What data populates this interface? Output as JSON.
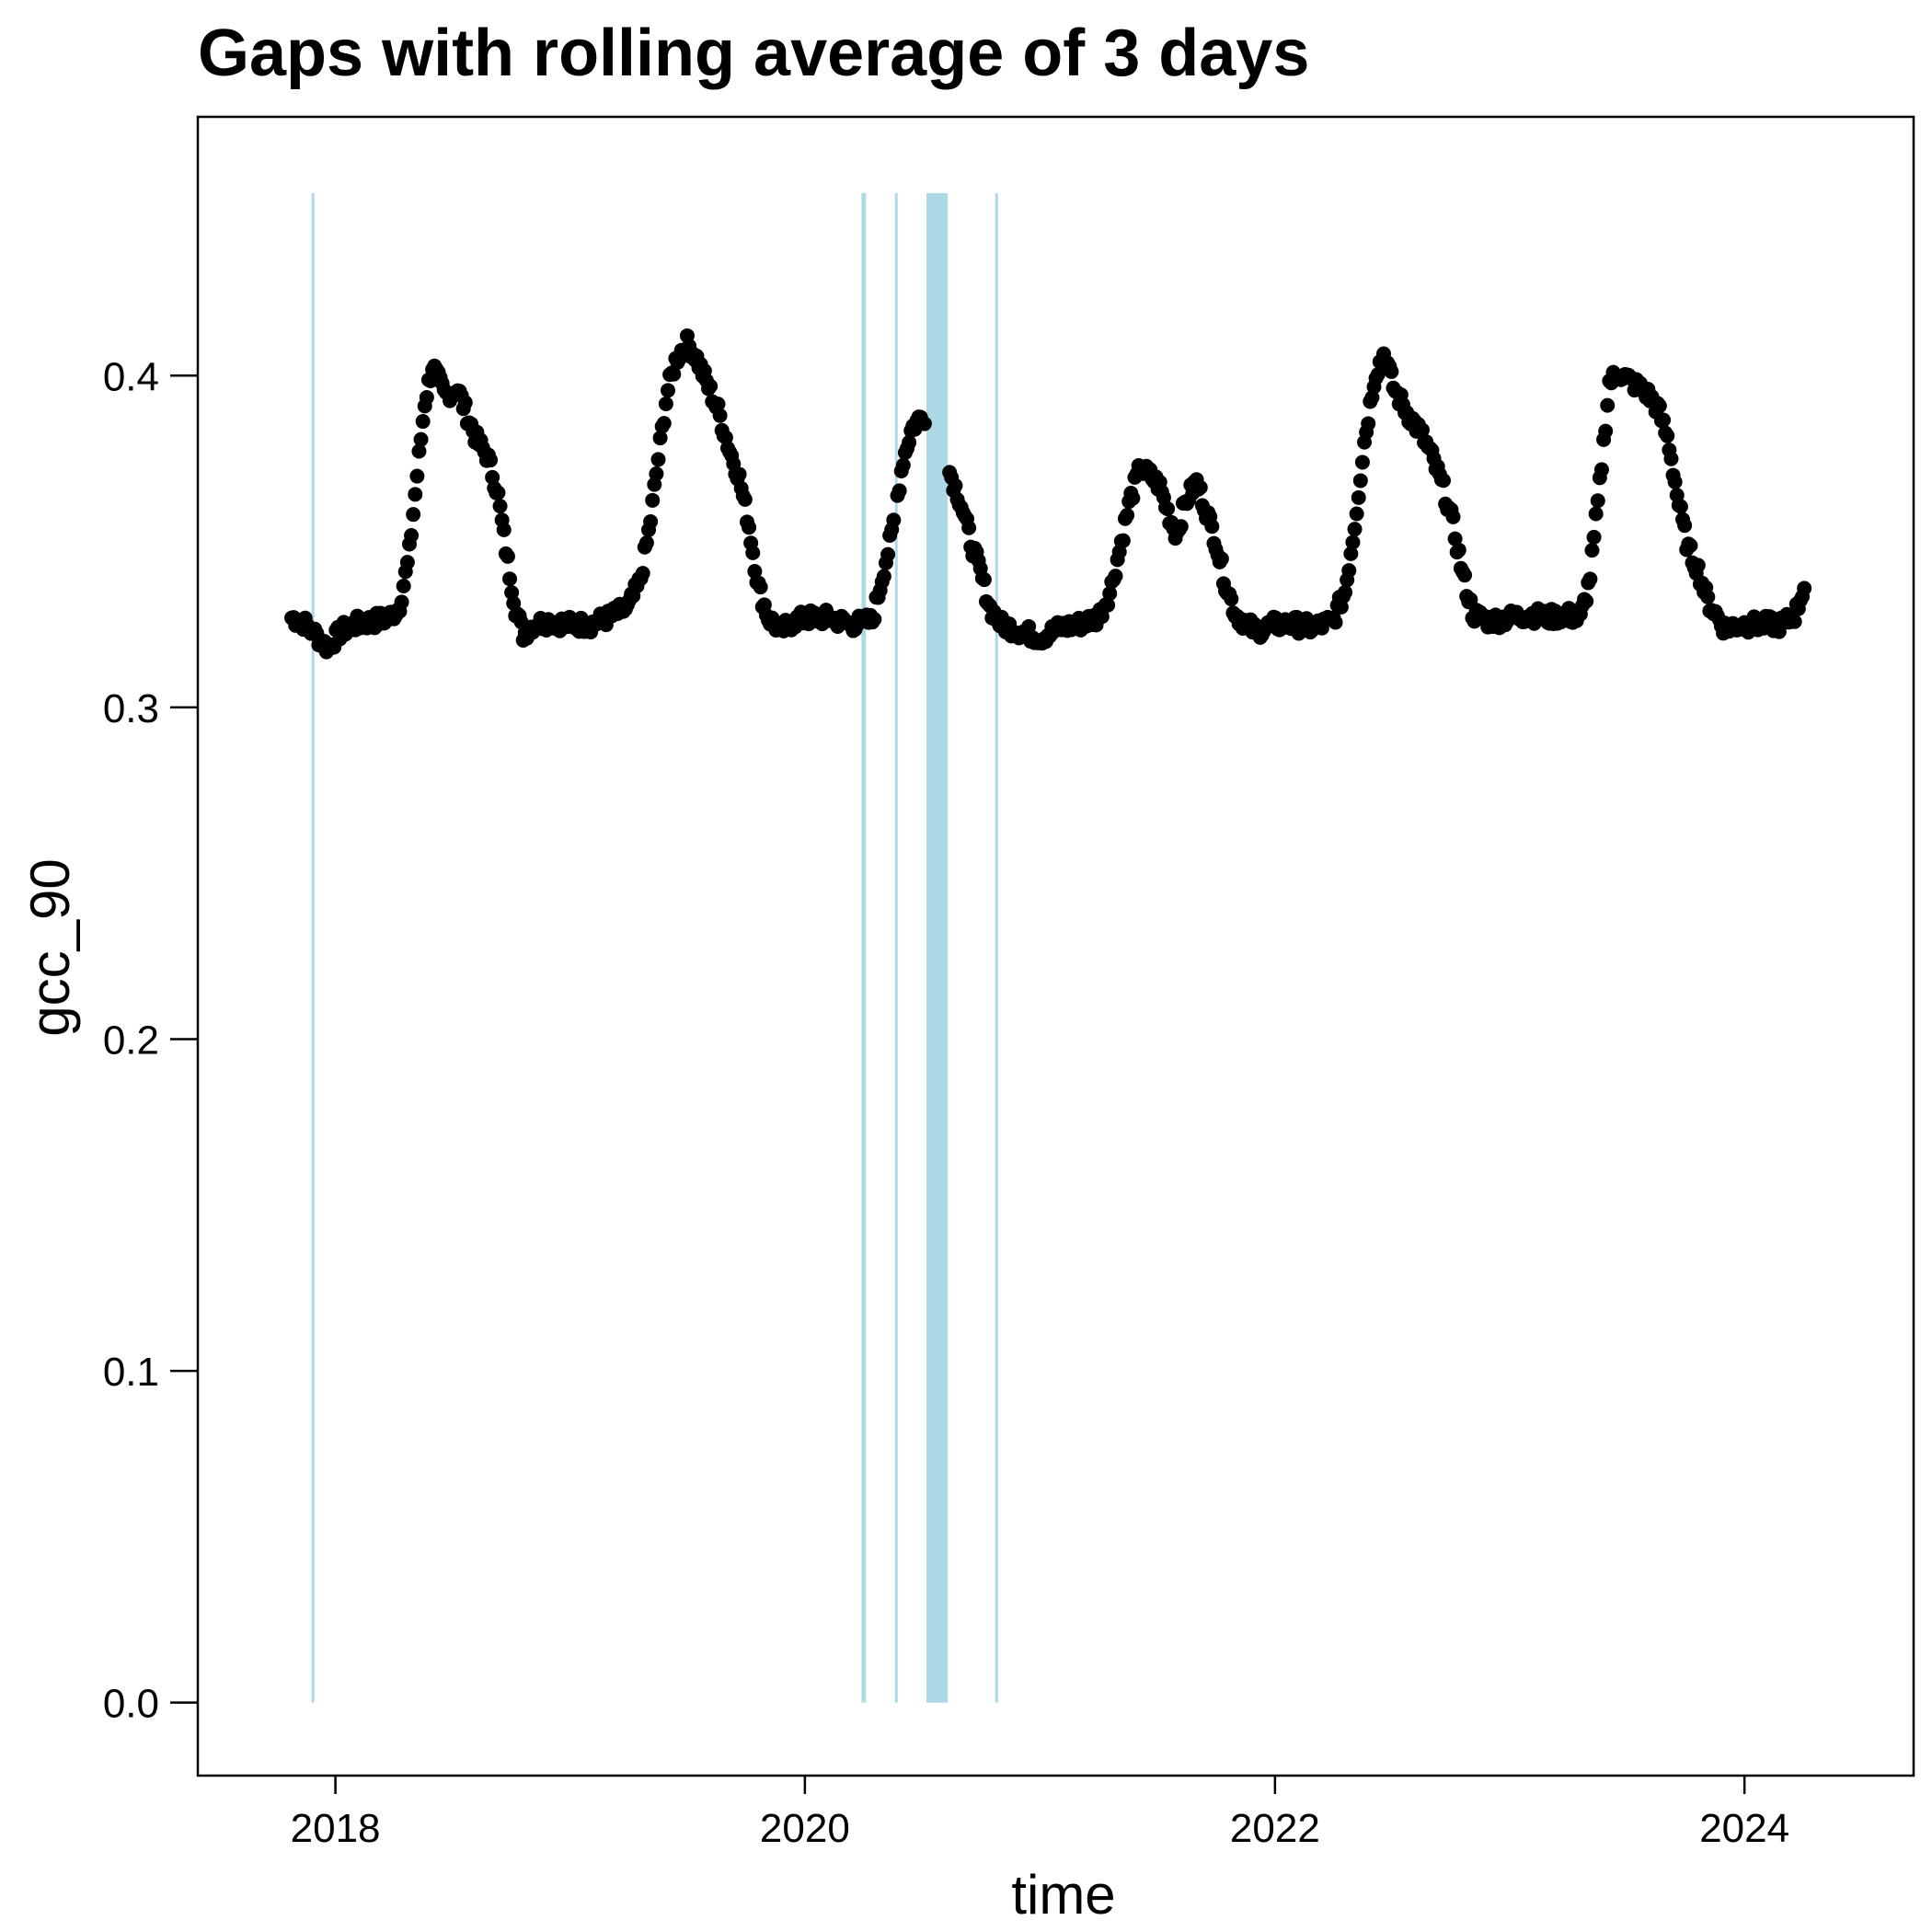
{
  "chart_data": {
    "type": "scatter",
    "title": "Gaps with rolling average of 3 days",
    "xlabel": "time",
    "ylabel": "gcc_90",
    "x_is_date": true,
    "xlim": [
      "2017-06-01",
      "2024-09-20"
    ],
    "ylim": [
      -0.022,
      0.478
    ],
    "x_ticks": [
      {
        "value": "2018-01-01",
        "label": "2018"
      },
      {
        "value": "2020-01-01",
        "label": "2020"
      },
      {
        "value": "2022-01-01",
        "label": "2022"
      },
      {
        "value": "2024-01-01",
        "label": "2024"
      }
    ],
    "y_ticks": [
      {
        "value": 0.0,
        "label": "0.0"
      },
      {
        "value": 0.1,
        "label": "0.1"
      },
      {
        "value": 0.2,
        "label": "0.2"
      },
      {
        "value": 0.3,
        "label": "0.3"
      },
      {
        "value": 0.4,
        "label": "0.4"
      }
    ],
    "grid": false,
    "gap_color": "#add8e6",
    "point_color": "#000000",
    "gaps": [
      {
        "start": "2017-11-25",
        "end": "2017-11-27",
        "ymin": 0.0,
        "ymax": 0.455
      },
      {
        "start": "2020-03-29",
        "end": "2020-04-05",
        "ymin": 0.0,
        "ymax": 0.455
      },
      {
        "start": "2020-05-20",
        "end": "2020-05-22",
        "ymin": 0.0,
        "ymax": 0.455
      },
      {
        "start": "2020-07-08",
        "end": "2020-08-10",
        "ymin": 0.0,
        "ymax": 0.455
      },
      {
        "start": "2020-10-23",
        "end": "2020-10-25",
        "ymin": 0.0,
        "ymax": 0.455
      }
    ],
    "series": [
      {
        "values": [
          [
            "2017-10-25",
            0.327
          ],
          [
            "2017-11-10",
            0.326
          ],
          [
            "2017-12-01",
            0.322
          ],
          [
            "2017-12-20",
            0.318
          ],
          [
            "2018-01-10",
            0.323
          ],
          [
            "2018-02-01",
            0.325
          ],
          [
            "2018-03-01",
            0.326
          ],
          [
            "2018-03-25",
            0.327
          ],
          [
            "2018-04-10",
            0.33
          ],
          [
            "2018-04-25",
            0.345
          ],
          [
            "2018-05-08",
            0.37
          ],
          [
            "2018-05-20",
            0.392
          ],
          [
            "2018-06-01",
            0.403
          ],
          [
            "2018-06-20",
            0.394
          ],
          [
            "2018-07-10",
            0.396
          ],
          [
            "2018-07-25",
            0.388
          ],
          [
            "2018-08-10",
            0.38
          ],
          [
            "2018-08-25",
            0.376
          ],
          [
            "2018-09-10",
            0.365
          ],
          [
            "2018-09-25",
            0.345
          ],
          [
            "2018-10-08",
            0.33
          ],
          [
            "2018-10-20",
            0.322
          ],
          [
            "2018-11-05",
            0.325
          ],
          [
            "2018-12-01",
            0.326
          ],
          [
            "2019-01-01",
            0.325
          ],
          [
            "2019-02-01",
            0.325
          ],
          [
            "2019-03-01",
            0.327
          ],
          [
            "2019-04-01",
            0.33
          ],
          [
            "2019-04-20",
            0.338
          ],
          [
            "2019-05-05",
            0.355
          ],
          [
            "2019-05-18",
            0.375
          ],
          [
            "2019-06-01",
            0.395
          ],
          [
            "2019-06-15",
            0.405
          ],
          [
            "2019-07-01",
            0.41
          ],
          [
            "2019-07-15",
            0.406
          ],
          [
            "2019-08-01",
            0.398
          ],
          [
            "2019-08-20",
            0.389
          ],
          [
            "2019-09-05",
            0.378
          ],
          [
            "2019-09-20",
            0.37
          ],
          [
            "2019-10-05",
            0.356
          ],
          [
            "2019-10-20",
            0.337
          ],
          [
            "2019-11-05",
            0.327
          ],
          [
            "2019-11-25",
            0.323
          ],
          [
            "2019-12-15",
            0.326
          ],
          [
            "2020-01-10",
            0.327
          ],
          [
            "2020-02-10",
            0.327
          ],
          [
            "2020-03-10",
            0.325
          ],
          [
            "2020-04-15",
            0.326
          ],
          [
            "2020-05-01",
            0.34
          ],
          [
            "2020-05-15",
            0.352
          ],
          [
            "2020-06-01",
            0.374
          ],
          [
            "2020-06-15",
            0.384
          ],
          [
            "2020-07-01",
            0.388
          ],
          [
            "2020-07-06",
            0.388
          ],
          [
            "2020-08-15",
            0.37
          ],
          [
            "2020-08-30",
            0.362
          ],
          [
            "2020-09-15",
            0.35
          ],
          [
            "2020-10-01",
            0.34
          ],
          [
            "2020-10-15",
            0.33
          ],
          [
            "2020-11-01",
            0.325
          ],
          [
            "2020-12-01",
            0.323
          ],
          [
            "2021-01-01",
            0.321
          ],
          [
            "2021-02-01",
            0.324
          ],
          [
            "2021-03-01",
            0.325
          ],
          [
            "2021-04-01",
            0.327
          ],
          [
            "2021-04-20",
            0.335
          ],
          [
            "2021-05-05",
            0.348
          ],
          [
            "2021-05-20",
            0.362
          ],
          [
            "2021-06-05",
            0.372
          ],
          [
            "2021-06-20",
            0.37
          ],
          [
            "2021-07-05",
            0.367
          ],
          [
            "2021-07-20",
            0.358
          ],
          [
            "2021-08-01",
            0.352
          ],
          [
            "2021-08-15",
            0.362
          ],
          [
            "2021-09-01",
            0.368
          ],
          [
            "2021-09-15",
            0.36
          ],
          [
            "2021-10-01",
            0.35
          ],
          [
            "2021-10-15",
            0.338
          ],
          [
            "2021-11-01",
            0.328
          ],
          [
            "2021-12-01",
            0.323
          ],
          [
            "2022-01-01",
            0.325
          ],
          [
            "2022-02-01",
            0.325
          ],
          [
            "2022-03-01",
            0.324
          ],
          [
            "2022-04-01",
            0.326
          ],
          [
            "2022-04-20",
            0.335
          ],
          [
            "2022-05-05",
            0.355
          ],
          [
            "2022-05-20",
            0.38
          ],
          [
            "2022-06-05",
            0.4
          ],
          [
            "2022-06-20",
            0.407
          ],
          [
            "2022-07-05",
            0.396
          ],
          [
            "2022-07-25",
            0.389
          ],
          [
            "2022-08-15",
            0.383
          ],
          [
            "2022-09-01",
            0.376
          ],
          [
            "2022-09-20",
            0.366
          ],
          [
            "2022-10-05",
            0.355
          ],
          [
            "2022-10-20",
            0.34
          ],
          [
            "2022-11-05",
            0.328
          ],
          [
            "2022-12-01",
            0.326
          ],
          [
            "2023-01-01",
            0.327
          ],
          [
            "2023-02-01",
            0.328
          ],
          [
            "2023-03-01",
            0.327
          ],
          [
            "2023-04-01",
            0.328
          ],
          [
            "2023-04-20",
            0.326
          ],
          [
            "2023-05-05",
            0.338
          ],
          [
            "2023-05-20",
            0.365
          ],
          [
            "2023-06-05",
            0.398
          ],
          [
            "2023-06-20",
            0.401
          ],
          [
            "2023-07-10",
            0.398
          ],
          [
            "2023-08-01",
            0.395
          ],
          [
            "2023-08-20",
            0.39
          ],
          [
            "2023-09-05",
            0.38
          ],
          [
            "2023-09-20",
            0.362
          ],
          [
            "2023-10-05",
            0.348
          ],
          [
            "2023-10-20",
            0.342
          ],
          [
            "2023-11-05",
            0.332
          ],
          [
            "2023-12-01",
            0.324
          ],
          [
            "2024-01-01",
            0.325
          ],
          [
            "2024-02-01",
            0.325
          ],
          [
            "2024-03-01",
            0.325
          ],
          [
            "2024-03-20",
            0.328
          ],
          [
            "2024-04-05",
            0.338
          ]
        ]
      }
    ]
  }
}
